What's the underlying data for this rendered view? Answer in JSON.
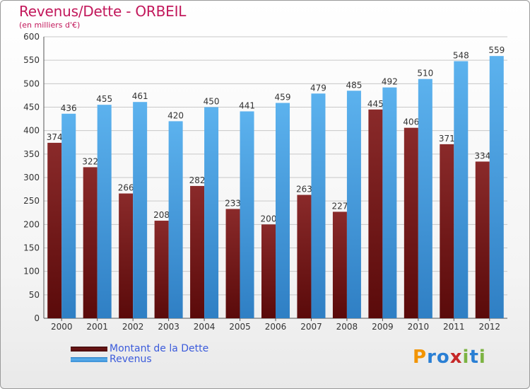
{
  "header": {
    "title": "Revenus/Dette - ORBEIL",
    "subtitle": "(en milliers d'€)"
  },
  "legend": {
    "items": [
      {
        "label": "Montant de la Dette",
        "color": "#6e1515"
      },
      {
        "label": "Revenus",
        "color": "#4aa3e6"
      }
    ]
  },
  "logo": {
    "text": "Proxiti",
    "letters": [
      {
        "ch": "P",
        "color": "#f29400"
      },
      {
        "ch": "r",
        "color": "#2a7fd4"
      },
      {
        "ch": "o",
        "color": "#2a7fd4"
      },
      {
        "ch": "x",
        "color": "#c62828"
      },
      {
        "ch": "i",
        "color": "#7cb342"
      },
      {
        "ch": "t",
        "color": "#2a7fd4"
      },
      {
        "ch": "i",
        "color": "#7cb342"
      }
    ]
  },
  "chart_data": {
    "type": "bar",
    "title": "Revenus/Dette - ORBEIL",
    "subtitle": "(en milliers d'€)",
    "categories": [
      "2000",
      "2001",
      "2002",
      "2003",
      "2004",
      "2005",
      "2006",
      "2007",
      "2008",
      "2009",
      "2010",
      "2011",
      "2012"
    ],
    "series": [
      {
        "name": "Montant de la Dette",
        "color": "#7a1f1f",
        "values": [
          374,
          322,
          266,
          208,
          282,
          233,
          200,
          263,
          227,
          445,
          406,
          371,
          334
        ]
      },
      {
        "name": "Revenus",
        "color": "#4aa3e6",
        "values": [
          436,
          455,
          461,
          420,
          450,
          441,
          459,
          479,
          485,
          492,
          510,
          548,
          559
        ]
      }
    ],
    "ylim": [
      0,
      600
    ],
    "yticks": [
      0,
      50,
      100,
      150,
      200,
      250,
      300,
      350,
      400,
      450,
      500,
      550,
      600
    ],
    "grid": true,
    "legend_position": "bottom-left"
  }
}
